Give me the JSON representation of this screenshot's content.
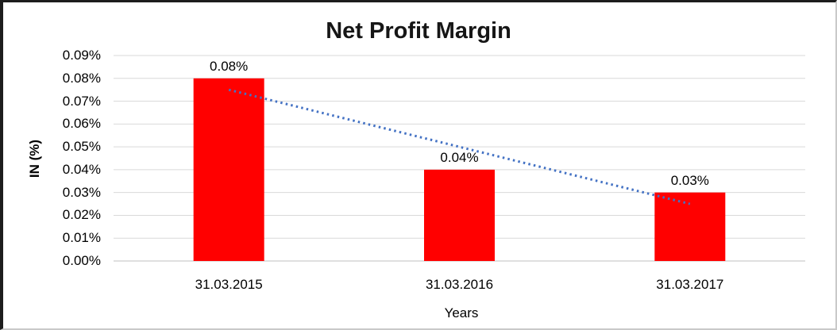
{
  "window": {
    "frame_dark_color": "#1d1d1d",
    "frame_light_color": "#c9c9c9",
    "background": "#ffffff"
  },
  "chart": {
    "title": "Net Profit Margin",
    "y_axis_title": "IN (%)",
    "x_axis_title": "Years"
  },
  "colors": {
    "bar": "#FF0000",
    "trendline": "#4472C4",
    "gridline": "#D9D9D9",
    "axis_line": "#BFBFBF",
    "title_text": "#161616",
    "tick_text": "#000000"
  },
  "chart_data": {
    "type": "bar",
    "title": "Net Profit Margin",
    "categories": [
      "31.03.2015",
      "31.03.2016",
      "31.03.2017"
    ],
    "values": [
      0.08,
      0.04,
      0.03
    ],
    "data_labels": [
      "0.08%",
      "0.04%",
      "0.03%"
    ],
    "xlabel": "Years",
    "ylabel": "IN (%)",
    "ylim": [
      0,
      0.09
    ],
    "y_tick_step": 0.01,
    "y_tick_labels": [
      "0.00%",
      "0.01%",
      "0.02%",
      "0.03%",
      "0.04%",
      "0.05%",
      "0.06%",
      "0.07%",
      "0.08%",
      "0.09%"
    ],
    "grid": true,
    "legend": "none",
    "bar_color": "#FF0000",
    "trendline": {
      "type": "linear",
      "style": "dotted",
      "color": "#4472C4",
      "start_value": 0.075,
      "end_value": 0.025
    }
  }
}
